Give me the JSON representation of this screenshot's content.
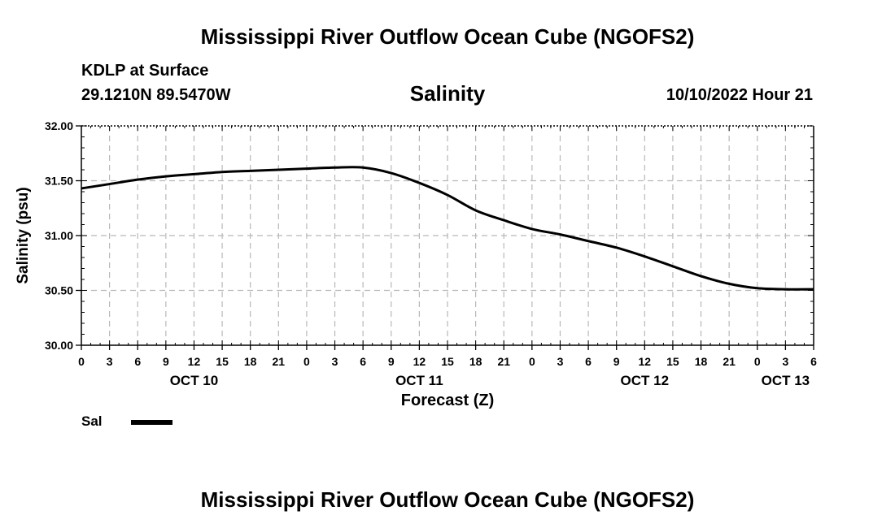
{
  "header": {
    "title": "Mississippi River Outflow Ocean Cube (NGOFS2)",
    "station": "KDLP at Surface",
    "coords": "29.1210N  89.5470W",
    "variable": "Salinity",
    "datetime": "10/10/2022 Hour 21"
  },
  "footer": {
    "title": "Mississippi River Outflow Ocean Cube (NGOFS2)"
  },
  "legend": {
    "label": "Sal",
    "color": "#000000"
  },
  "chart_data": {
    "type": "line",
    "title": "Salinity",
    "xlabel": "Forecast (Z)",
    "ylabel": "Salinity (psu)",
    "xlim": [
      0,
      78
    ],
    "ylim": [
      30.0,
      32.0
    ],
    "x_ticks": [
      0,
      3,
      6,
      9,
      12,
      15,
      18,
      21,
      24,
      27,
      30,
      33,
      36,
      39,
      42,
      45,
      48,
      51,
      54,
      57,
      60,
      63,
      66,
      69,
      72,
      75,
      78
    ],
    "x_tick_labels": [
      "0",
      "3",
      "6",
      "9",
      "12",
      "15",
      "18",
      "21",
      "0",
      "3",
      "6",
      "9",
      "12",
      "15",
      "18",
      "21",
      "0",
      "3",
      "6",
      "9",
      "12",
      "15",
      "18",
      "21",
      "0",
      "3",
      "6"
    ],
    "day_labels": [
      {
        "label": "OCT 10",
        "hour": 12
      },
      {
        "label": "OCT 11",
        "hour": 36
      },
      {
        "label": "OCT 12",
        "hour": 60
      },
      {
        "label": "OCT 13",
        "hour": 75
      }
    ],
    "y_ticks": [
      30.0,
      30.5,
      31.0,
      31.5,
      32.0
    ],
    "y_tick_labels": [
      "30.00",
      "30.50",
      "31.00",
      "31.50",
      "32.00"
    ],
    "grid": true,
    "series": [
      {
        "name": "Sal",
        "x": [
          0,
          3,
          6,
          9,
          12,
          15,
          18,
          21,
          24,
          27,
          30,
          33,
          36,
          39,
          42,
          45,
          48,
          51,
          54,
          57,
          60,
          63,
          66,
          69,
          72,
          75,
          78
        ],
        "values": [
          31.43,
          31.47,
          31.51,
          31.54,
          31.56,
          31.58,
          31.59,
          31.6,
          31.61,
          31.62,
          31.62,
          31.57,
          31.48,
          31.37,
          31.23,
          31.14,
          31.06,
          31.01,
          30.95,
          30.89,
          30.81,
          30.72,
          30.63,
          30.56,
          30.52,
          30.51,
          30.51
        ]
      }
    ]
  }
}
